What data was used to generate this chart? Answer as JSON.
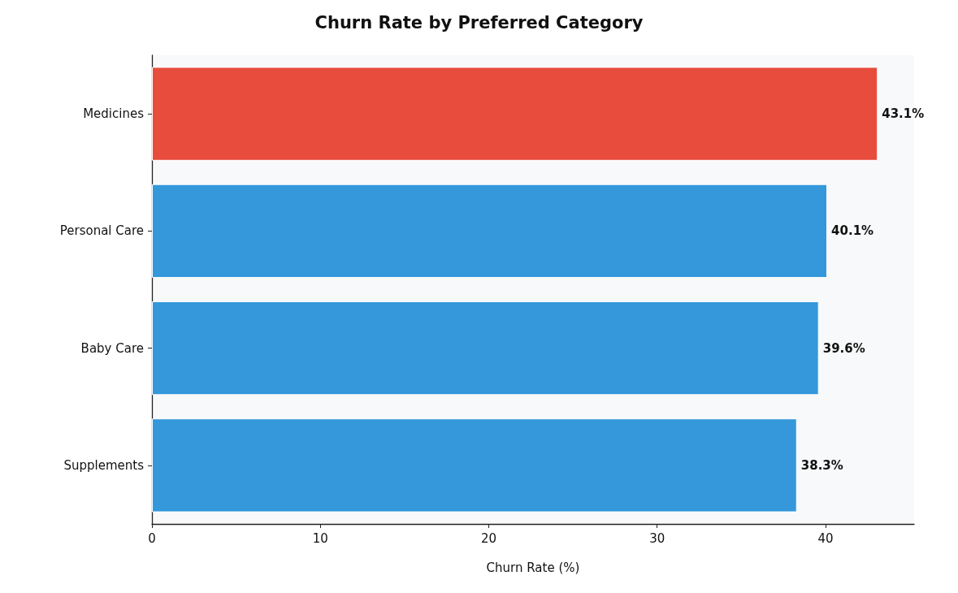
{
  "chart_data": {
    "type": "bar",
    "orientation": "horizontal",
    "title": "Churn Rate by Preferred Category",
    "xlabel": "Churn Rate (%)",
    "categories": [
      "Medicines",
      "Personal Care",
      "Baby Care",
      "Supplements"
    ],
    "values": [
      43.1,
      40.1,
      39.6,
      38.3
    ],
    "colors": [
      "#e74c3c",
      "#3498db",
      "#3498db",
      "#3498db"
    ],
    "value_labels": [
      "43.1%",
      "40.1%",
      "39.6%",
      "38.3%"
    ],
    "xlim": [
      0,
      45.26
    ],
    "xticks": [
      0,
      10,
      20,
      30,
      40
    ],
    "grid": false
  }
}
